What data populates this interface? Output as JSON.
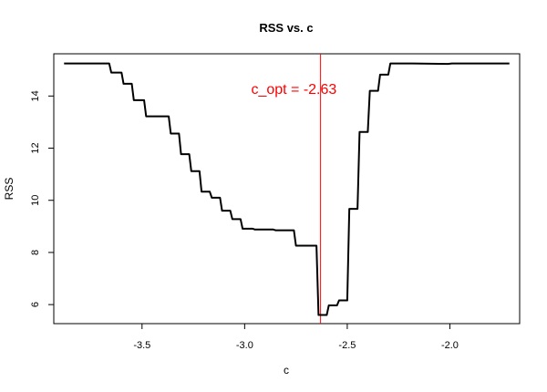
{
  "chart_data": {
    "type": "line",
    "title": "RSS vs. c",
    "xlabel": "c",
    "ylabel": "RSS",
    "xlim": [
      -3.93,
      -1.66
    ],
    "ylim": [
      5.27,
      15.62
    ],
    "x_ticks": [
      -3.5,
      -3.0,
      -2.5,
      -2.0
    ],
    "x_tick_labels": [
      "-3.5",
      "-3.0",
      "-2.5",
      "-2.0"
    ],
    "y_ticks": [
      6,
      8,
      10,
      12,
      14
    ],
    "y_tick_labels": [
      "6",
      "8",
      "10",
      "12",
      "14"
    ],
    "grid": false,
    "line_color": "#000000",
    "annotation_color": "#ff0000",
    "series": [
      {
        "x": [
          -3.88,
          -3.66,
          -3.65,
          -3.6,
          -3.59,
          -3.55,
          -3.54,
          -3.49,
          -3.48,
          -3.44,
          -3.43,
          -3.37,
          -3.36,
          -3.32,
          -3.31,
          -3.27,
          -3.26,
          -3.22,
          -3.21,
          -3.17,
          -3.16,
          -3.12,
          -3.11,
          -3.07,
          -3.06,
          -3.02,
          -3.01,
          -2.96,
          -2.95,
          -2.91,
          -2.9,
          -2.86,
          -2.85,
          -2.81,
          -2.8,
          -2.76,
          -2.75,
          -2.7,
          -2.69,
          -2.65,
          -2.64,
          -2.6,
          -2.59,
          -2.55,
          -2.54,
          -2.5,
          -2.49,
          -2.45,
          -2.44,
          -2.4,
          -2.39,
          -2.35,
          -2.34,
          -2.3,
          -2.29,
          -2.25,
          -2.24,
          -2.19,
          -2.18,
          -2.01,
          -1.99,
          -1.71
        ],
        "y": [
          15.25,
          15.25,
          14.9,
          14.9,
          14.47,
          14.47,
          13.84,
          13.84,
          13.22,
          13.22,
          13.22,
          13.22,
          12.56,
          12.56,
          11.77,
          11.77,
          11.12,
          11.12,
          10.33,
          10.33,
          10.1,
          10.1,
          9.6,
          9.6,
          9.28,
          9.28,
          8.91,
          8.91,
          8.88,
          8.88,
          8.88,
          8.88,
          8.85,
          8.85,
          8.85,
          8.85,
          8.26,
          8.26,
          8.26,
          8.26,
          5.6,
          5.6,
          5.97,
          5.97,
          6.16,
          6.16,
          9.67,
          9.67,
          12.62,
          12.62,
          14.2,
          14.2,
          14.82,
          14.82,
          15.25,
          15.25,
          15.25,
          15.25,
          15.25,
          15.23,
          15.25,
          15.25
        ]
      }
    ],
    "vline": {
      "x": -2.63
    },
    "annotation": {
      "text": "c_opt = -2.63",
      "x": -2.76,
      "y": 14.29
    }
  }
}
